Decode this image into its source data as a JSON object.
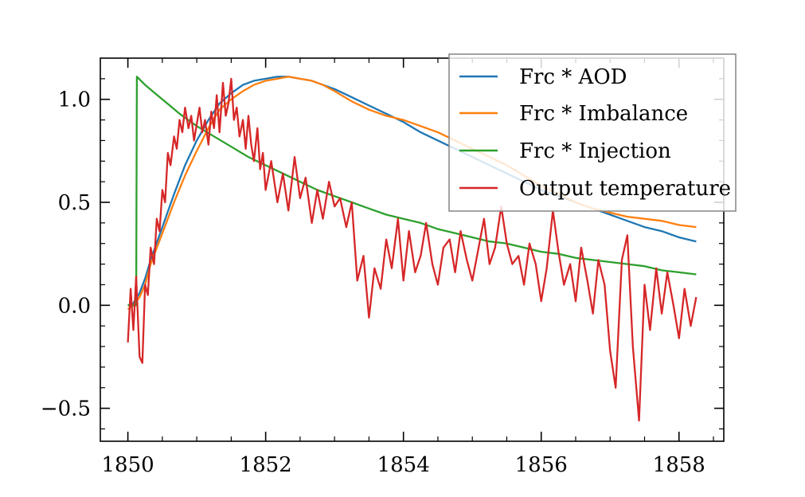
{
  "chart_data": {
    "type": "line",
    "title": "",
    "xlabel": "",
    "ylabel": "",
    "xlim": [
      1849.6,
      1858.65
    ],
    "ylim": [
      -0.66,
      1.2
    ],
    "x_ticks": [
      {
        "value": 1850,
        "label": "1850"
      },
      {
        "value": 1852,
        "label": "1852"
      },
      {
        "value": 1854,
        "label": "1854"
      },
      {
        "value": 1856,
        "label": "1856"
      },
      {
        "value": 1858,
        "label": "1858"
      }
    ],
    "y_ticks": [
      {
        "value": -0.5,
        "label": "−0.5"
      },
      {
        "value": 0.0,
        "label": "0.0"
      },
      {
        "value": 0.5,
        "label": "0.5"
      },
      {
        "value": 1.0,
        "label": "1.0"
      }
    ],
    "grid": false,
    "legend_position": "top-right",
    "series": [
      {
        "name": "Frc * AOD",
        "color": "#1f77b4",
        "x": [
          1850.0,
          1850.08,
          1850.17,
          1850.25,
          1850.33,
          1850.5,
          1850.67,
          1850.83,
          1851.0,
          1851.17,
          1851.33,
          1851.5,
          1851.67,
          1851.83,
          1852.0,
          1852.17,
          1852.33,
          1852.5,
          1852.67,
          1852.83,
          1853.0,
          1853.25,
          1853.5,
          1853.75,
          1854.0,
          1854.25,
          1854.5,
          1854.75,
          1855.0,
          1855.25,
          1855.5,
          1855.75,
          1856.0,
          1856.25,
          1856.5,
          1856.75,
          1857.0,
          1857.25,
          1857.5,
          1857.75,
          1858.0,
          1858.25
        ],
        "y": [
          0.0,
          0.01,
          0.06,
          0.13,
          0.22,
          0.38,
          0.54,
          0.68,
          0.8,
          0.9,
          0.98,
          1.03,
          1.07,
          1.09,
          1.1,
          1.11,
          1.11,
          1.1,
          1.09,
          1.07,
          1.05,
          1.01,
          0.97,
          0.93,
          0.89,
          0.84,
          0.8,
          0.76,
          0.72,
          0.68,
          0.64,
          0.6,
          0.56,
          0.53,
          0.5,
          0.47,
          0.44,
          0.41,
          0.38,
          0.36,
          0.33,
          0.31
        ]
      },
      {
        "name": "Frc * Imbalance",
        "color": "#ff7f0e",
        "x": [
          1850.0,
          1850.08,
          1850.17,
          1850.25,
          1850.33,
          1850.5,
          1850.67,
          1850.83,
          1851.0,
          1851.17,
          1851.33,
          1851.5,
          1851.67,
          1851.83,
          1852.0,
          1852.17,
          1852.33,
          1852.5,
          1852.67,
          1852.83,
          1853.0,
          1853.25,
          1853.5,
          1853.75,
          1854.0,
          1854.25,
          1854.5,
          1854.75,
          1855.0,
          1855.25,
          1855.5,
          1855.75,
          1856.0,
          1856.25,
          1856.5,
          1856.75,
          1857.0,
          1857.25,
          1857.5,
          1857.75,
          1858.0,
          1858.25
        ],
        "y": [
          -0.02,
          0.0,
          0.04,
          0.1,
          0.2,
          0.35,
          0.5,
          0.63,
          0.75,
          0.86,
          0.95,
          1.0,
          1.04,
          1.07,
          1.09,
          1.1,
          1.11,
          1.1,
          1.09,
          1.07,
          1.04,
          0.99,
          0.95,
          0.92,
          0.9,
          0.87,
          0.84,
          0.8,
          0.76,
          0.72,
          0.68,
          0.63,
          0.58,
          0.54,
          0.5,
          0.47,
          0.45,
          0.43,
          0.42,
          0.41,
          0.39,
          0.38
        ]
      },
      {
        "name": "Frc * Injection",
        "color": "#2ca02c",
        "x": [
          1850.0,
          1850.12,
          1850.13,
          1850.25,
          1850.5,
          1850.75,
          1851.0,
          1851.25,
          1851.5,
          1851.75,
          1852.0,
          1852.25,
          1852.5,
          1852.75,
          1853.0,
          1853.25,
          1853.5,
          1853.75,
          1854.0,
          1854.25,
          1854.5,
          1854.75,
          1855.0,
          1855.25,
          1855.5,
          1855.75,
          1856.0,
          1856.25,
          1856.5,
          1856.75,
          1857.0,
          1857.25,
          1857.5,
          1857.75,
          1858.0,
          1858.25
        ],
        "y": [
          0.0,
          0.0,
          1.11,
          1.07,
          1.0,
          0.93,
          0.87,
          0.82,
          0.77,
          0.72,
          0.68,
          0.64,
          0.6,
          0.56,
          0.53,
          0.5,
          0.47,
          0.44,
          0.42,
          0.4,
          0.37,
          0.35,
          0.33,
          0.31,
          0.3,
          0.28,
          0.26,
          0.25,
          0.23,
          0.22,
          0.21,
          0.2,
          0.19,
          0.17,
          0.16,
          0.15
        ]
      },
      {
        "name": "Output temperature",
        "color": "#d62728",
        "x": [
          1850.0,
          1850.04,
          1850.08,
          1850.12,
          1850.17,
          1850.21,
          1850.25,
          1850.29,
          1850.33,
          1850.38,
          1850.42,
          1850.46,
          1850.5,
          1850.54,
          1850.58,
          1850.62,
          1850.67,
          1850.71,
          1850.75,
          1850.79,
          1850.83,
          1850.88,
          1850.92,
          1850.96,
          1851.0,
          1851.04,
          1851.08,
          1851.12,
          1851.17,
          1851.21,
          1851.25,
          1851.29,
          1851.33,
          1851.38,
          1851.42,
          1851.46,
          1851.5,
          1851.54,
          1851.58,
          1851.62,
          1851.67,
          1851.71,
          1851.75,
          1851.79,
          1851.83,
          1851.88,
          1851.92,
          1851.96,
          1852.0,
          1852.08,
          1852.17,
          1852.25,
          1852.33,
          1852.42,
          1852.5,
          1852.58,
          1852.67,
          1852.75,
          1852.83,
          1852.92,
          1853.0,
          1853.08,
          1853.17,
          1853.25,
          1853.33,
          1853.42,
          1853.5,
          1853.58,
          1853.67,
          1853.75,
          1853.83,
          1853.92,
          1854.0,
          1854.08,
          1854.17,
          1854.25,
          1854.33,
          1854.42,
          1854.5,
          1854.58,
          1854.67,
          1854.75,
          1854.83,
          1854.92,
          1855.0,
          1855.08,
          1855.17,
          1855.25,
          1855.33,
          1855.42,
          1855.5,
          1855.58,
          1855.67,
          1855.75,
          1855.83,
          1855.92,
          1856.0,
          1856.08,
          1856.17,
          1856.25,
          1856.33,
          1856.42,
          1856.5,
          1856.58,
          1856.67,
          1856.75,
          1856.83,
          1856.92,
          1857.0,
          1857.08,
          1857.17,
          1857.25,
          1857.33,
          1857.42,
          1857.5,
          1857.58,
          1857.67,
          1857.75,
          1857.83,
          1857.92,
          1858.0,
          1858.08,
          1858.17,
          1858.25
        ],
        "y": [
          -0.18,
          0.08,
          -0.12,
          0.14,
          -0.25,
          -0.28,
          0.1,
          0.05,
          0.28,
          0.2,
          0.42,
          0.36,
          0.56,
          0.5,
          0.74,
          0.68,
          0.82,
          0.76,
          0.9,
          0.84,
          0.96,
          0.86,
          0.92,
          0.8,
          0.88,
          0.96,
          0.84,
          0.9,
          0.78,
          0.94,
          0.86,
          1.02,
          0.84,
          1.08,
          0.92,
          0.98,
          1.1,
          0.9,
          0.96,
          0.82,
          0.9,
          0.76,
          0.92,
          0.78,
          0.7,
          0.86,
          0.66,
          0.74,
          0.56,
          0.7,
          0.5,
          0.64,
          0.46,
          0.72,
          0.52,
          0.62,
          0.4,
          0.56,
          0.42,
          0.6,
          0.48,
          0.52,
          0.38,
          0.5,
          0.12,
          0.24,
          -0.06,
          0.18,
          0.08,
          0.32,
          0.18,
          0.42,
          0.12,
          0.36,
          0.16,
          0.24,
          0.4,
          0.2,
          0.1,
          0.28,
          0.32,
          0.16,
          0.36,
          0.22,
          0.12,
          0.26,
          0.42,
          0.2,
          0.28,
          0.48,
          0.3,
          0.2,
          0.24,
          0.1,
          0.3,
          0.2,
          0.02,
          0.18,
          0.46,
          0.26,
          0.1,
          0.2,
          0.02,
          0.28,
          0.12,
          -0.04,
          0.22,
          0.1,
          -0.22,
          -0.4,
          0.22,
          0.34,
          -0.2,
          -0.56,
          0.1,
          -0.12,
          0.18,
          -0.04,
          0.16,
          0.0,
          -0.16,
          0.08,
          -0.1,
          0.04
        ]
      }
    ]
  }
}
